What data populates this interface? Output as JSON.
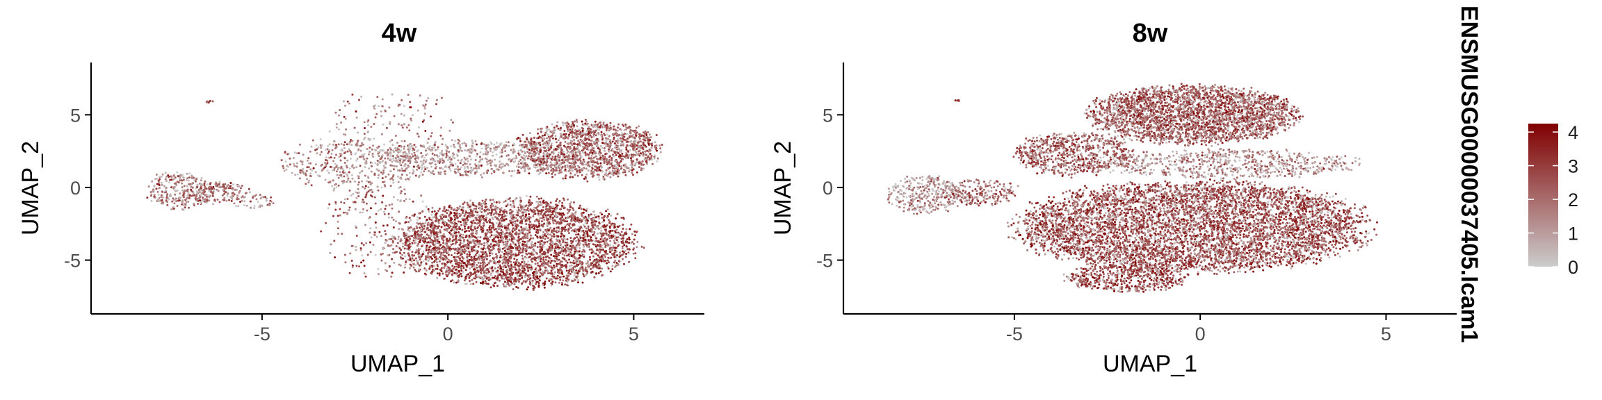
{
  "chart_data": {
    "type": "scatter",
    "description_kind": "UMAP feature plot",
    "xlabel": "UMAP_1",
    "ylabel": "UMAP_2",
    "xticks": [
      -5,
      0,
      5
    ],
    "yticks": [
      -5,
      0,
      5
    ],
    "xlim": [
      -9.6,
      6.9
    ],
    "ylim": [
      -8.7,
      8.6
    ],
    "legend_title": "ENSMUSG00000037405.Icam1",
    "legend_placement": "right",
    "color_scale": {
      "low": "#cccccc",
      "high": "#800000",
      "min": 0,
      "max": 4.25,
      "ticks": [
        0,
        1,
        2,
        3,
        4
      ]
    },
    "panels": [
      {
        "title": "4w",
        "regions": [
          {
            "cx": -7.2,
            "cy": -0.2,
            "rx": 0.9,
            "ry": 1.3,
            "n": 260,
            "expr": 0.38
          },
          {
            "cx": -6.2,
            "cy": -0.4,
            "rx": 0.9,
            "ry": 0.8,
            "n": 160,
            "expr": 0.45
          },
          {
            "cx": -5.3,
            "cy": -1.0,
            "rx": 0.7,
            "ry": 0.5,
            "n": 40,
            "expr": 0.35
          },
          {
            "cx": -6.4,
            "cy": 5.9,
            "rx": 0.1,
            "ry": 0.08,
            "n": 6,
            "expr": 0.7
          },
          {
            "cx": -1.5,
            "cy": 4.5,
            "rx": 1.8,
            "ry": 2.2,
            "n": 130,
            "expr": 0.4
          },
          {
            "cx": -2.5,
            "cy": 1.6,
            "rx": 2.0,
            "ry": 1.8,
            "n": 420,
            "expr": 0.33
          },
          {
            "cx": 0.8,
            "cy": 2.0,
            "rx": 3.0,
            "ry": 1.2,
            "n": 700,
            "expr": 0.25
          },
          {
            "cx": 3.8,
            "cy": 2.6,
            "rx": 1.9,
            "ry": 2.0,
            "n": 1300,
            "expr": 0.52
          },
          {
            "cx": 1.8,
            "cy": -3.8,
            "rx": 3.2,
            "ry": 3.0,
            "n": 3600,
            "expr": 0.62
          },
          {
            "cx": -1.8,
            "cy": -3.0,
            "rx": 1.6,
            "ry": 3.2,
            "n": 260,
            "expr": 0.5
          }
        ]
      },
      {
        "title": "8w",
        "regions": [
          {
            "cx": -7.4,
            "cy": -0.5,
            "rx": 1.0,
            "ry": 1.3,
            "n": 330,
            "expr": 0.25
          },
          {
            "cx": -5.9,
            "cy": -0.3,
            "rx": 1.0,
            "ry": 0.9,
            "n": 200,
            "expr": 0.45
          },
          {
            "cx": -6.5,
            "cy": 6.0,
            "rx": 0.1,
            "ry": 0.08,
            "n": 5,
            "expr": 0.7
          },
          {
            "cx": -3.4,
            "cy": 2.3,
            "rx": 1.6,
            "ry": 1.5,
            "n": 700,
            "expr": 0.55
          },
          {
            "cx": -0.2,
            "cy": 5.0,
            "rx": 2.8,
            "ry": 2.0,
            "n": 2800,
            "expr": 0.55
          },
          {
            "cx": 0.8,
            "cy": 1.6,
            "rx": 3.5,
            "ry": 1.0,
            "n": 700,
            "expr": 0.3
          },
          {
            "cx": -0.2,
            "cy": -2.7,
            "rx": 4.7,
            "ry": 3.1,
            "n": 5600,
            "expr": 0.6
          },
          {
            "cx": -2.0,
            "cy": -6.2,
            "rx": 1.6,
            "ry": 1.0,
            "n": 500,
            "expr": 0.65
          }
        ]
      }
    ]
  }
}
